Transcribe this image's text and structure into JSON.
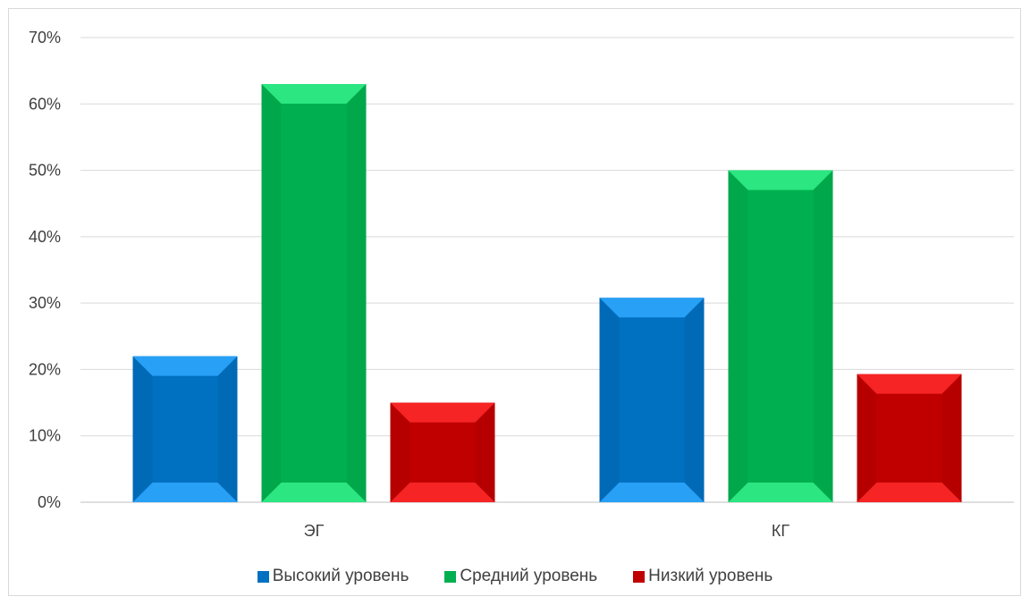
{
  "chart_data": {
    "type": "bar",
    "categories": [
      "ЭГ",
      "КГ"
    ],
    "series": [
      {
        "name": "Высокий уровень",
        "values": [
          22,
          30.8
        ],
        "color": "#0070c0",
        "light": "#2fa8ff"
      },
      {
        "name": "Средний уровень",
        "values": [
          63,
          50
        ],
        "color": "#00b050",
        "light": "#33f08a"
      },
      {
        "name": "Низкий уровень",
        "values": [
          15,
          19.3
        ],
        "color": "#c00000",
        "light": "#ff2a2a"
      }
    ],
    "y_ticks": [
      "0%",
      "10%",
      "20%",
      "30%",
      "40%",
      "50%",
      "60%",
      "70%"
    ],
    "ylim": [
      0,
      70
    ],
    "grid": true,
    "legend_position": "bottom"
  }
}
